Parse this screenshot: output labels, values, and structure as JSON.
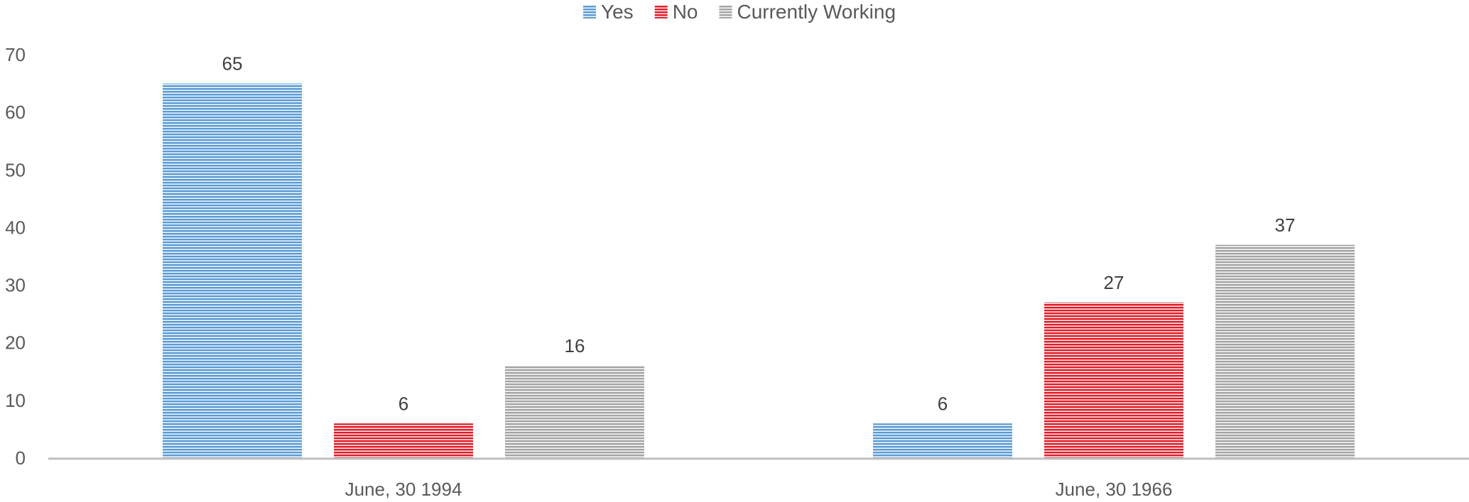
{
  "chart_data": {
    "type": "bar",
    "categories": [
      "June, 30 1994",
      "June, 30 1966"
    ],
    "series": [
      {
        "name": "Yes",
        "values": [
          65,
          6
        ],
        "color": "#5B9BD5"
      },
      {
        "name": "No",
        "values": [
          6,
          27
        ],
        "color": "#E01F2A"
      },
      {
        "name": "Currently Working",
        "values": [
          16,
          37
        ],
        "color": "#A5A5A5"
      }
    ],
    "ylim": [
      0,
      70
    ],
    "yticks": [
      0,
      10,
      20,
      30,
      40,
      50,
      60,
      70
    ],
    "xlabel": "",
    "ylabel": "",
    "title": "",
    "legend_position": "top",
    "grid": false,
    "data_labels": true,
    "bar_fill": "horizontal-line-pattern"
  }
}
